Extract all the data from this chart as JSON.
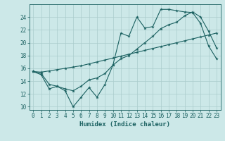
{
  "xlabel": "Humidex (Indice chaleur)",
  "xlim": [
    -0.5,
    23.5
  ],
  "ylim": [
    9.5,
    26.0
  ],
  "yticks": [
    10,
    12,
    14,
    16,
    18,
    20,
    22,
    24
  ],
  "xticks": [
    0,
    1,
    2,
    3,
    4,
    5,
    6,
    7,
    8,
    9,
    10,
    11,
    12,
    13,
    14,
    15,
    16,
    17,
    18,
    19,
    20,
    21,
    22,
    23
  ],
  "bg_color": "#cce8e8",
  "grid_color": "#aacccc",
  "line_color": "#1a6060",
  "series1_x": [
    0,
    1,
    2,
    3,
    4,
    5,
    6,
    7,
    8,
    9,
    10,
    11,
    12,
    13,
    14,
    15,
    16,
    17,
    18,
    19,
    20,
    21,
    22,
    23
  ],
  "series1_y": [
    15.5,
    15.0,
    12.8,
    13.2,
    12.5,
    10.0,
    11.5,
    13.0,
    11.5,
    13.5,
    16.5,
    21.5,
    21.0,
    24.0,
    22.3,
    22.5,
    25.2,
    25.2,
    25.0,
    24.8,
    24.7,
    23.0,
    19.5,
    17.5
  ],
  "series2_x": [
    0,
    1,
    2,
    3,
    4,
    5,
    6,
    7,
    8,
    9,
    10,
    11,
    12,
    13,
    14,
    15,
    16,
    17,
    18,
    19,
    20,
    21,
    22,
    23
  ],
  "series2_y": [
    15.5,
    15.4,
    15.6,
    15.8,
    16.0,
    16.2,
    16.4,
    16.7,
    17.0,
    17.3,
    17.6,
    17.9,
    18.2,
    18.5,
    18.8,
    19.1,
    19.4,
    19.7,
    20.0,
    20.3,
    20.6,
    20.9,
    21.2,
    21.5
  ],
  "series3_x": [
    0,
    1,
    2,
    3,
    4,
    5,
    6,
    7,
    8,
    9,
    10,
    11,
    12,
    13,
    14,
    15,
    16,
    17,
    18,
    19,
    20,
    21,
    22,
    23
  ],
  "series3_y": [
    15.5,
    15.2,
    13.5,
    13.2,
    12.8,
    12.5,
    13.2,
    14.2,
    14.5,
    15.2,
    16.5,
    17.5,
    18.0,
    19.0,
    20.0,
    21.0,
    22.2,
    22.8,
    23.2,
    24.2,
    24.8,
    24.0,
    21.8,
    19.2
  ]
}
